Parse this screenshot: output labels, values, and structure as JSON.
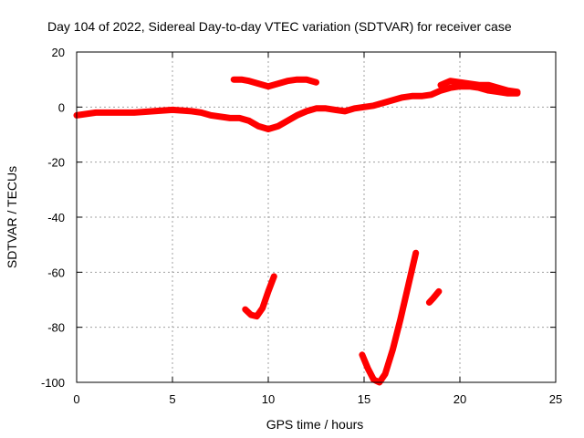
{
  "chart_data": {
    "type": "line",
    "title": "Day 104 of 2022, Sidereal Day-to-day VTEC variation (SDTVAR) for receiver case",
    "xlabel": "GPS time / hours",
    "ylabel": "SDTVAR / TECUs",
    "xlim": [
      0,
      25
    ],
    "ylim": [
      -100,
      20
    ],
    "xticks": [
      0,
      5,
      10,
      15,
      20,
      25
    ],
    "yticks": [
      20,
      0,
      -20,
      -40,
      -60,
      -80,
      -100
    ],
    "grid": true,
    "color": "#ff0000",
    "series": [
      {
        "name": "main",
        "x": [
          0.0,
          1.0,
          2.0,
          3.0,
          4.0,
          5.0,
          6.0,
          6.5,
          7.0,
          7.5,
          8.0,
          8.5,
          9.0,
          9.5,
          10.0,
          10.5,
          11.0,
          11.5,
          12.0,
          12.5,
          13.0,
          13.5,
          14.0,
          14.5,
          15.0,
          15.5,
          16.0,
          16.5,
          17.0,
          17.5,
          18.0,
          18.5,
          19.0,
          19.5,
          20.0,
          20.5,
          21.0,
          21.5,
          22.0,
          22.5,
          23.0
        ],
        "y": [
          -3,
          -2,
          -2,
          -2,
          -1.5,
          -1,
          -1.5,
          -2,
          -3,
          -3.5,
          -4,
          -4,
          -5,
          -7,
          -8,
          -7,
          -5,
          -3,
          -1.5,
          -0.5,
          -0.5,
          -1,
          -1.5,
          -0.5,
          0,
          0.5,
          1.5,
          2.5,
          3.5,
          4,
          4,
          4.5,
          6,
          7,
          7.5,
          7.5,
          7,
          6,
          5.5,
          5,
          5
        ]
      },
      {
        "name": "upper-arc",
        "x": [
          8.2,
          8.6,
          9.0,
          9.5,
          10.0,
          10.5,
          11.0,
          11.5,
          12.0,
          12.5
        ],
        "y": [
          10,
          10,
          9.5,
          8.5,
          7.5,
          8.5,
          9.5,
          10,
          10,
          9
        ]
      },
      {
        "name": "late-offset",
        "x": [
          19.0,
          19.5,
          20.0,
          20.5,
          21.0,
          21.5,
          22.0,
          22.5,
          23.0
        ],
        "y": [
          8,
          9.5,
          9,
          8.5,
          8,
          8,
          7,
          6,
          5.5
        ]
      },
      {
        "name": "dip-10h",
        "x": [
          8.8,
          9.1,
          9.4,
          9.7,
          10.0,
          10.3
        ],
        "y": [
          -73.5,
          -75.5,
          -76,
          -73,
          -67,
          -61.5
        ]
      },
      {
        "name": "dip-16h",
        "x": [
          14.9,
          15.2,
          15.5,
          15.8,
          16.1,
          16.5,
          16.9,
          17.3,
          17.7
        ],
        "y": [
          -90,
          -95,
          -99,
          -100,
          -97,
          -88,
          -77,
          -65,
          -53
        ]
      },
      {
        "name": "fragment-18h",
        "x": [
          18.4,
          18.6,
          18.9
        ],
        "y": [
          -71,
          -69.5,
          -67
        ]
      }
    ]
  }
}
